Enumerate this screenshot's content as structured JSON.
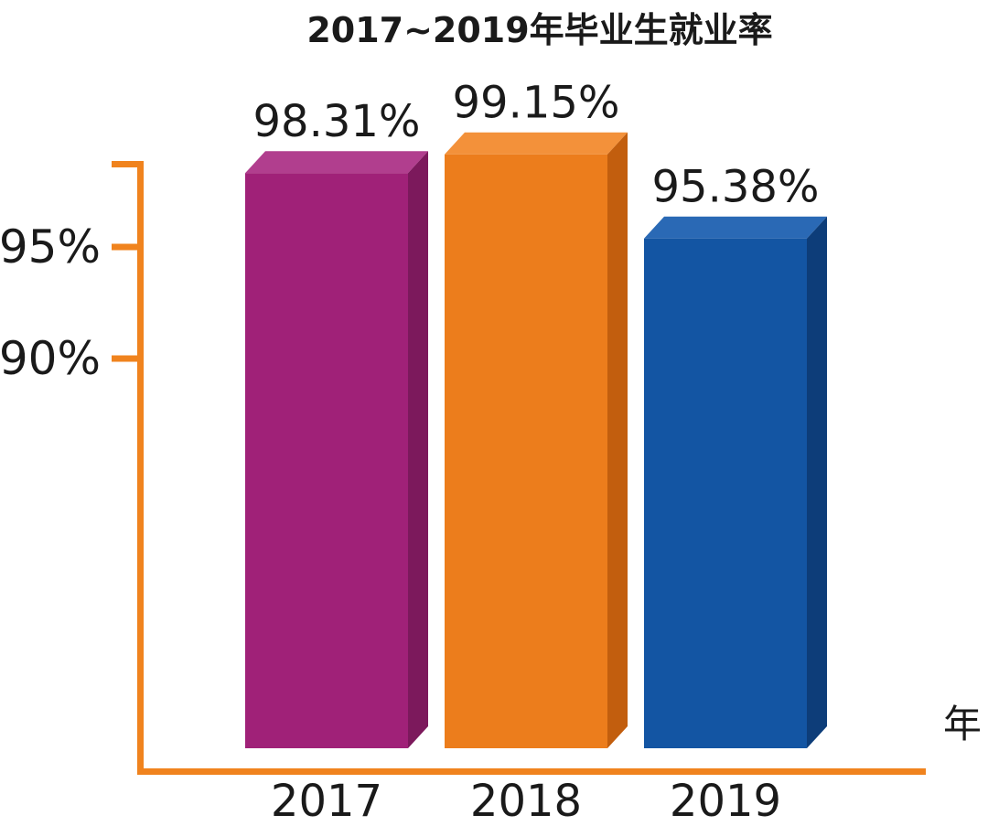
{
  "chart_data": {
    "type": "bar",
    "title": "2017~2019年毕业生就业率",
    "xlabel": "年",
    "ylabel": "",
    "categories": [
      "2017",
      "2018",
      "2019"
    ],
    "values": [
      98.31,
      99.15,
      95.38
    ],
    "value_labels": [
      "98.31%",
      "99.15%",
      "95.38%"
    ],
    "yticks": [
      {
        "label": "95%",
        "value": 95
      },
      {
        "label": "90%",
        "value": 90
      }
    ],
    "axis": {
      "tick_values": [
        95,
        90
      ],
      "grid": false,
      "legend": "none",
      "style": "3d-bars"
    },
    "axis_color": "#F0831E",
    "text_color": "#1A1A1A",
    "background": "#FFFFFF",
    "bar_colors": [
      {
        "front": "#A02178",
        "side": "#7C195C",
        "top": "#B13E8E"
      },
      {
        "front": "#EC7D1C",
        "side": "#C25E0E",
        "top": "#F3913A"
      },
      {
        "front": "#1355A3",
        "side": "#0D3D79",
        "top": "#2A69B5"
      }
    ]
  }
}
